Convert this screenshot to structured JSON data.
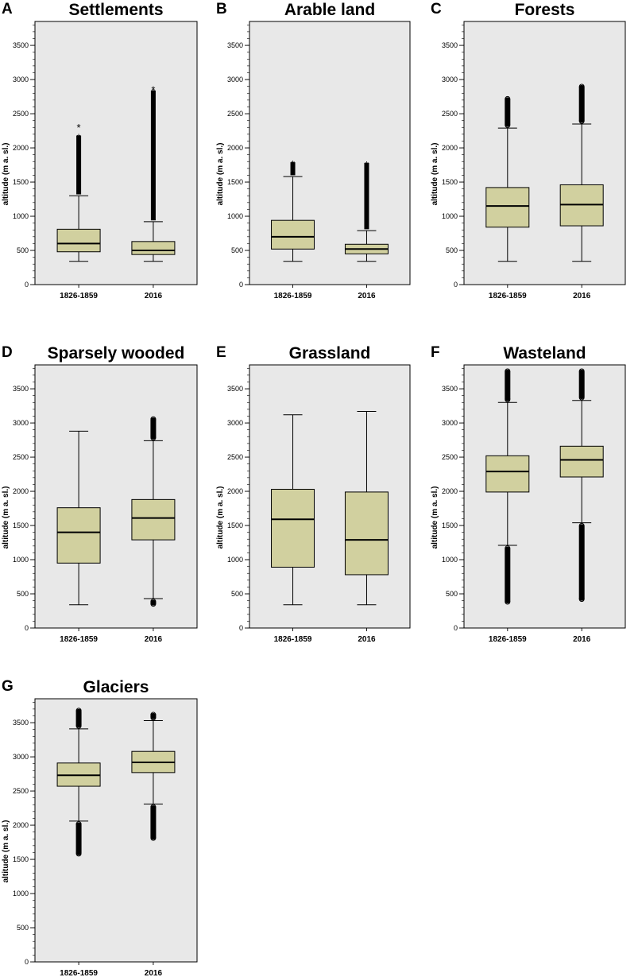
{
  "colors": {
    "plot_bg": "#e8e8e8",
    "box_fill": "#d1d09f",
    "stroke": "#000000"
  },
  "chart_data": [
    {
      "letter": "A",
      "title": "Settlements",
      "type": "box",
      "ylabel": "altitude (m a. sl.)",
      "ylim": [
        0,
        3850
      ],
      "yticks": [
        0,
        500,
        1000,
        1500,
        2000,
        2500,
        3000,
        3500
      ],
      "categories": [
        "1826-1859",
        "2016"
      ],
      "boxes": [
        {
          "category": "1826-1859",
          "whisker_low": 340,
          "q1": 480,
          "median": 600,
          "q3": 810,
          "whisker_high": 1300,
          "outliers_low": [],
          "outliers_high": [
            1320,
            2180
          ],
          "outlier_marker": "star",
          "extremes_high": [
            2340
          ]
        },
        {
          "category": "2016",
          "whisker_low": 340,
          "q1": 440,
          "median": 500,
          "q3": 630,
          "whisker_high": 920,
          "outliers_low": [],
          "outliers_high": [
            940,
            2840
          ],
          "outlier_marker": "star",
          "extremes_high": [
            2890
          ]
        }
      ]
    },
    {
      "letter": "B",
      "title": "Arable land",
      "type": "box",
      "ylabel": "altitude (m a. sl.)",
      "ylim": [
        0,
        3850
      ],
      "yticks": [
        0,
        500,
        1000,
        1500,
        2000,
        2500,
        3000,
        3500
      ],
      "categories": [
        "1826-1859",
        "2016"
      ],
      "boxes": [
        {
          "category": "1826-1859",
          "whisker_low": 340,
          "q1": 520,
          "median": 700,
          "q3": 940,
          "whisker_high": 1580,
          "outliers_low": [],
          "outliers_high": [
            1600,
            1790
          ],
          "outlier_marker": "star",
          "extremes_high": []
        },
        {
          "category": "2016",
          "whisker_low": 340,
          "q1": 450,
          "median": 520,
          "q3": 590,
          "whisker_high": 790,
          "outliers_low": [],
          "outliers_high": [
            810,
            1780
          ],
          "outlier_marker": "star",
          "extremes_high": []
        }
      ]
    },
    {
      "letter": "C",
      "title": "Forests",
      "type": "box",
      "ylabel": "altitude (m a. sl.)",
      "ylim": [
        0,
        3850
      ],
      "yticks": [
        0,
        500,
        1000,
        1500,
        2000,
        2500,
        3000,
        3500
      ],
      "categories": [
        "1826-1859",
        "2016"
      ],
      "boxes": [
        {
          "category": "1826-1859",
          "whisker_low": 340,
          "q1": 840,
          "median": 1150,
          "q3": 1420,
          "whisker_high": 2290,
          "outliers_low": [],
          "outliers_high": [
            2310,
            2740
          ],
          "outlier_marker": "circle",
          "extremes_high": []
        },
        {
          "category": "2016",
          "whisker_low": 340,
          "q1": 860,
          "median": 1170,
          "q3": 1460,
          "whisker_high": 2350,
          "outliers_low": [],
          "outliers_high": [
            2370,
            2920
          ],
          "outlier_marker": "circle",
          "extremes_high": []
        }
      ]
    },
    {
      "letter": "D",
      "title": "Sparsely wooded",
      "type": "box",
      "ylabel": "altitude (m a. sl.)",
      "ylim": [
        0,
        3850
      ],
      "yticks": [
        0,
        500,
        1000,
        1500,
        2000,
        2500,
        3000,
        3500
      ],
      "categories": [
        "1826-1859",
        "2016"
      ],
      "boxes": [
        {
          "category": "1826-1859",
          "whisker_low": 340,
          "q1": 950,
          "median": 1400,
          "q3": 1760,
          "whisker_high": 2880,
          "outliers_low": [],
          "outliers_high": [],
          "outlier_marker": "circle",
          "extremes_high": []
        },
        {
          "category": "2016",
          "whisker_low": 430,
          "q1": 1290,
          "median": 1610,
          "q3": 1880,
          "whisker_high": 2740,
          "outliers_low": [
            330,
            410
          ],
          "outliers_high": [
            2760,
            3080
          ],
          "outlier_marker": "circle",
          "extremes_high": []
        }
      ]
    },
    {
      "letter": "E",
      "title": "Grassland",
      "type": "box",
      "ylabel": "altitude (m a. sl.)",
      "ylim": [
        0,
        3850
      ],
      "yticks": [
        0,
        500,
        1000,
        1500,
        2000,
        2500,
        3000,
        3500
      ],
      "categories": [
        "1826-1859",
        "2016"
      ],
      "boxes": [
        {
          "category": "1826-1859",
          "whisker_low": 340,
          "q1": 890,
          "median": 1590,
          "q3": 2030,
          "whisker_high": 3120,
          "outliers_low": [],
          "outliers_high": [],
          "outlier_marker": "circle",
          "extremes_high": []
        },
        {
          "category": "2016",
          "whisker_low": 340,
          "q1": 780,
          "median": 1290,
          "q3": 1990,
          "whisker_high": 3170,
          "outliers_low": [],
          "outliers_high": [],
          "outlier_marker": "circle",
          "extremes_high": []
        }
      ]
    },
    {
      "letter": "F",
      "title": "Wasteland",
      "type": "box",
      "ylabel": "altitude (m a. sl.)",
      "ylim": [
        0,
        3850
      ],
      "yticks": [
        0,
        500,
        1000,
        1500,
        2000,
        2500,
        3000,
        3500
      ],
      "categories": [
        "1826-1859",
        "2016"
      ],
      "boxes": [
        {
          "category": "1826-1859",
          "whisker_low": 1210,
          "q1": 1990,
          "median": 2290,
          "q3": 2520,
          "whisker_high": 3300,
          "outliers_low": [
            360,
            1190
          ],
          "outliers_high": [
            3320,
            3780
          ],
          "outlier_marker": "circle",
          "extremes_high": []
        },
        {
          "category": "2016",
          "whisker_low": 1540,
          "q1": 2210,
          "median": 2460,
          "q3": 2660,
          "whisker_high": 3330,
          "outliers_low": [
            400,
            1520
          ],
          "outliers_high": [
            3350,
            3780
          ],
          "outlier_marker": "circle",
          "extremes_high": []
        }
      ]
    },
    {
      "letter": "G",
      "title": "Glaciers",
      "type": "box",
      "ylabel": "altitude (m a. sl.)",
      "ylim": [
        0,
        3850
      ],
      "yticks": [
        0,
        500,
        1000,
        1500,
        2000,
        2500,
        3000,
        3500
      ],
      "categories": [
        "1826-1859",
        "2016"
      ],
      "boxes": [
        {
          "category": "1826-1859",
          "whisker_low": 2060,
          "q1": 2570,
          "median": 2730,
          "q3": 2910,
          "whisker_high": 3410,
          "outliers_low": [
            1560,
            2040
          ],
          "outliers_high": [
            3430,
            3700
          ],
          "outlier_marker": "circle",
          "extremes_high": []
        },
        {
          "category": "2016",
          "whisker_low": 2310,
          "q1": 2770,
          "median": 2920,
          "q3": 3080,
          "whisker_high": 3530,
          "outliers_low": [
            1790,
            2290
          ],
          "outliers_high": [
            3550,
            3640
          ],
          "outlier_marker": "circle",
          "extremes_high": []
        }
      ]
    }
  ]
}
